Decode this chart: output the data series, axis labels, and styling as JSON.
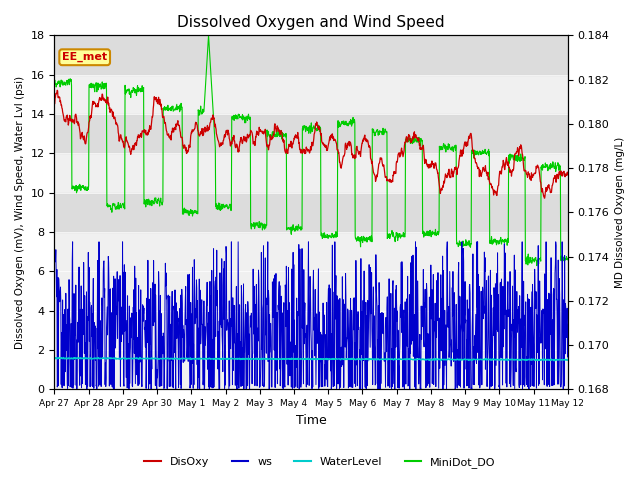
{
  "title": "Dissolved Oxygen and Wind Speed",
  "xlabel": "Time",
  "ylabel_left": "Dissolved Oxygen (mV), Wind Speed, Water Lvl (psi)",
  "ylabel_right": "MD Dissolved Oxygen (mg/L)",
  "ylim_left": [
    0,
    18
  ],
  "ylim_right": [
    0.168,
    0.184
  ],
  "yticks_left": [
    0,
    2,
    4,
    6,
    8,
    10,
    12,
    14,
    16,
    18
  ],
  "yticks_right": [
    0.168,
    0.17,
    0.172,
    0.174,
    0.176,
    0.178,
    0.18,
    0.182,
    0.184
  ],
  "xtick_labels": [
    "Apr 27",
    "Apr 28",
    "Apr 29",
    "Apr 30",
    "May 1",
    "May 2",
    "May 3",
    "May 4",
    "May 5",
    "May 6",
    "May 7",
    "May 8",
    "May 9",
    "May 10",
    "May 11",
    "May 12"
  ],
  "num_points": 1440,
  "duration_days": 15,
  "annotation_text": "EE_met",
  "annotation_bg": "#ffff99",
  "annotation_border": "#cc8800",
  "colors": {
    "DisOxy": "#cc0000",
    "ws": "#0000cc",
    "WaterLevel": "#00cccc",
    "MiniDot_DO": "#00cc00"
  },
  "band_color": "#d8d8d8",
  "background_color": "#f0f0f0",
  "band_ranges": [
    [
      8,
      10
    ],
    [
      12,
      14
    ],
    [
      16,
      18
    ]
  ]
}
